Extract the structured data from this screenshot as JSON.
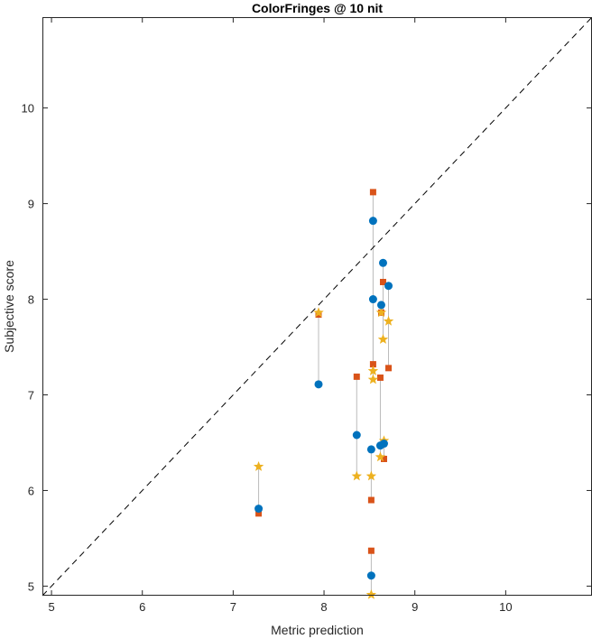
{
  "chart_data": {
    "type": "scatter",
    "title": "ColorFringes @ 10 nit",
    "xlabel": "Metric prediction",
    "ylabel": "Subjective score",
    "xlim": [
      4.9,
      10.95
    ],
    "ylim": [
      4.9,
      10.95
    ],
    "xticks": [
      5,
      6,
      7,
      8,
      9,
      10
    ],
    "yticks": [
      5,
      6,
      7,
      8,
      9,
      10
    ],
    "grid": false,
    "diagonal_reference_line": true,
    "colors": {
      "circle": "#0072BD",
      "square": "#D95319",
      "star": "#EDB120",
      "connector": "#BBBBBB",
      "diagonal": "#000000"
    },
    "groups": [
      {
        "x": 7.28,
        "circle": 5.81,
        "square": 5.76,
        "star": 6.25
      },
      {
        "x": 7.94,
        "circle": 7.11,
        "square": 7.84,
        "star": 7.86
      },
      {
        "x": 8.36,
        "circle": 6.58,
        "square": 7.19,
        "star": 6.15
      },
      {
        "x": 8.52,
        "circle": 6.43,
        "square": 5.9,
        "star": 6.15
      },
      {
        "x": 8.52,
        "circle": 5.11,
        "square": 5.37,
        "star": 4.91
      },
      {
        "x": 8.54,
        "circle": 8.82,
        "square": 9.12,
        "star": 7.25
      },
      {
        "x": 8.54,
        "circle": 8.0,
        "square": 7.32,
        "star": 7.16
      },
      {
        "x": 8.62,
        "circle": 6.47,
        "square": 7.18,
        "star": 6.35
      },
      {
        "x": 8.63,
        "circle": 7.94,
        "square": 7.86,
        "star": 7.86
      },
      {
        "x": 8.65,
        "circle": 8.38,
        "square": 8.18,
        "star": 7.58
      },
      {
        "x": 8.66,
        "circle": 6.49,
        "square": 6.33,
        "star": 6.52
      },
      {
        "x": 8.71,
        "circle": 8.14,
        "square": 7.28,
        "star": 7.77
      }
    ]
  }
}
